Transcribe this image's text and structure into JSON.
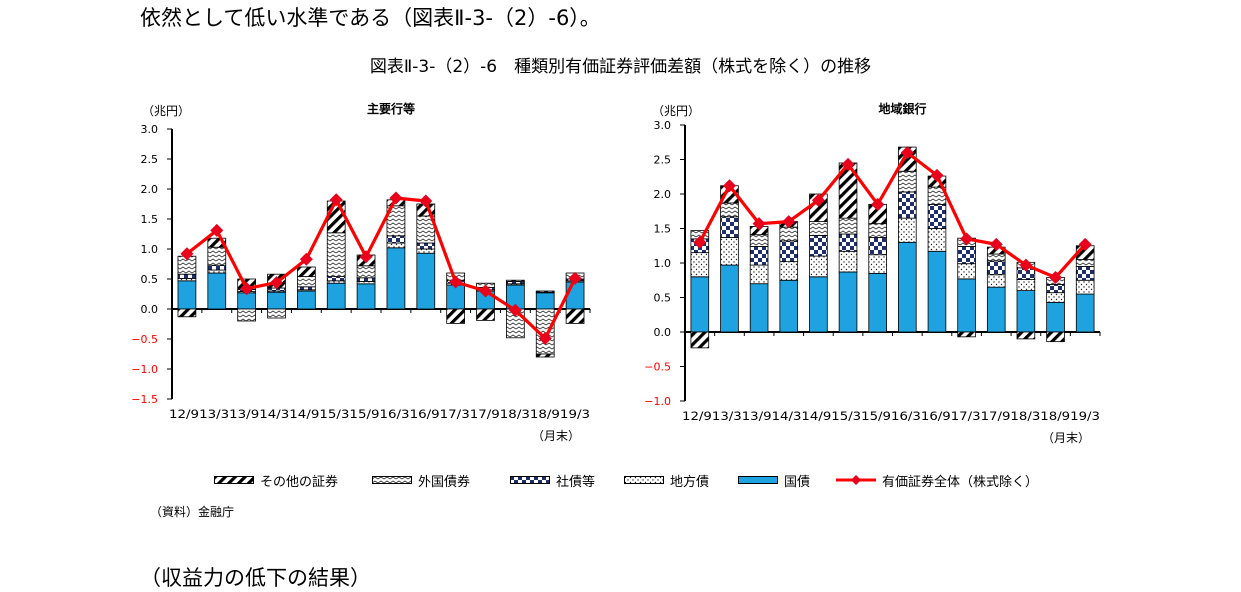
{
  "lead_text": "依然として低い水準である（図表Ⅱ-3-（2）-6）。",
  "figure_title": "図表Ⅱ-3-（2）-6　種類別有価証券評価差額（株式を除く）の推移",
  "source_note": "（資料）金融庁",
  "next_heading": "（収益力の低下の結果）",
  "colors": {
    "jgb": "#1fa3e0",
    "total_line": "#ff0000",
    "marker": "#e8001c",
    "outline": "#000000"
  },
  "legend": [
    {
      "key": "other",
      "label": "その他の証券",
      "pattern": "wide-diagonal"
    },
    {
      "key": "foreign",
      "label": "外国債券",
      "pattern": "zigzag"
    },
    {
      "key": "corp",
      "label": "社債等",
      "pattern": "checker-navy"
    },
    {
      "key": "local",
      "label": "地方債",
      "pattern": "dots"
    },
    {
      "key": "jgb",
      "label": "国債",
      "pattern": "solid-blue"
    },
    {
      "key": "total",
      "label": "有価証券全体（株式除く）",
      "pattern": "red-line-diamond"
    }
  ],
  "chart_data": [
    {
      "type": "bar",
      "stacked": true,
      "title": "主要行等",
      "ylabel": "（兆円）",
      "xunit": "（月末）",
      "ylim": [
        -1.5,
        3.0
      ],
      "yticks": [
        "3.0",
        "2.5",
        "2.0",
        "1.5",
        "1.0",
        "0.5",
        "0.0",
        "−0.5",
        "−1.0",
        "−1.5"
      ],
      "categories": [
        "12/9",
        "13/3",
        "13/9",
        "14/3",
        "14/9",
        "15/3",
        "15/9",
        "16/3",
        "16/9",
        "17/3",
        "17/9",
        "18/3",
        "18/9",
        "19/3"
      ],
      "x_axis_text": "12/913/313/914/314/915/315/916/316/917/317/918/318/919/3",
      "series": [
        {
          "name": "国債",
          "key": "jgb",
          "values": [
            0.47,
            0.6,
            0.27,
            0.28,
            0.3,
            0.43,
            0.42,
            1.02,
            0.93,
            0.4,
            0.3,
            0.4,
            0.27,
            0.45
          ]
        },
        {
          "name": "地方債",
          "key": "local",
          "values": [
            0.04,
            0.05,
            0.02,
            0.02,
            0.02,
            0.04,
            0.04,
            0.08,
            0.07,
            0.03,
            0.02,
            0.02,
            0.01,
            0.02
          ]
        },
        {
          "name": "社債等",
          "key": "corp",
          "values": [
            0.07,
            0.08,
            0.04,
            0.05,
            0.05,
            0.07,
            0.06,
            0.12,
            0.1,
            0.05,
            0.04,
            0.04,
            0.02,
            0.03
          ]
        },
        {
          "name": "外国債券",
          "key": "foreign",
          "values": [
            0.3,
            0.3,
            -0.2,
            -0.15,
            0.17,
            0.73,
            0.2,
            0.5,
            0.45,
            0.12,
            0.07,
            -0.48,
            -0.75,
            0.1
          ]
        },
        {
          "name": "その他の証券",
          "key": "other",
          "values": [
            -0.13,
            0.15,
            0.17,
            0.23,
            0.16,
            0.53,
            0.18,
            0.1,
            0.2,
            -0.24,
            -0.19,
            0.02,
            -0.05,
            -0.24
          ]
        }
      ],
      "line": {
        "name": "有価証券全体（株式除く）",
        "key": "total",
        "values": [
          0.92,
          1.31,
          0.34,
          0.44,
          0.83,
          1.82,
          0.87,
          1.85,
          1.8,
          0.45,
          0.3,
          -0.02,
          -0.49,
          0.51
        ]
      }
    },
    {
      "type": "bar",
      "stacked": true,
      "title": "地域銀行",
      "ylabel": "（兆円）",
      "xunit": "（月末）",
      "ylim": [
        -1.0,
        3.0
      ],
      "yticks": [
        "3.0",
        "2.5",
        "2.0",
        "1.5",
        "1.0",
        "0.5",
        "0.0",
        "−0.5",
        "−1.0"
      ],
      "categories": [
        "12/9",
        "13/3",
        "13/9",
        "14/3",
        "14/9",
        "15/3",
        "15/9",
        "16/3",
        "16/9",
        "17/3",
        "17/9",
        "18/3",
        "18/9",
        "19/3"
      ],
      "x_axis_text": "12/913/313/914/314/915/315/916/316/917/317/918/318/919/3",
      "series": [
        {
          "name": "国債",
          "key": "jgb",
          "values": [
            0.8,
            0.97,
            0.7,
            0.75,
            0.8,
            0.87,
            0.85,
            1.3,
            1.17,
            0.77,
            0.65,
            0.6,
            0.43,
            0.55
          ]
        },
        {
          "name": "地方債",
          "key": "local",
          "values": [
            0.35,
            0.4,
            0.27,
            0.27,
            0.3,
            0.3,
            0.27,
            0.35,
            0.33,
            0.22,
            0.18,
            0.16,
            0.14,
            0.2
          ]
        },
        {
          "name": "社債等",
          "key": "corp",
          "values": [
            0.2,
            0.3,
            0.27,
            0.3,
            0.3,
            0.25,
            0.25,
            0.38,
            0.35,
            0.25,
            0.2,
            0.17,
            0.12,
            0.2
          ]
        },
        {
          "name": "外国債券",
          "key": "foreign",
          "values": [
            0.12,
            0.2,
            0.17,
            0.2,
            0.2,
            0.23,
            0.2,
            0.3,
            0.25,
            0.12,
            0.1,
            0.08,
            0.1,
            0.1
          ]
        },
        {
          "name": "その他の証券",
          "key": "other",
          "values": [
            -0.23,
            0.25,
            0.12,
            0.08,
            0.4,
            0.8,
            0.28,
            0.35,
            0.16,
            -0.07,
            0.1,
            -0.1,
            -0.14,
            0.2
          ]
        }
      ],
      "line": {
        "name": "有価証券全体（株式除く）",
        "key": "total",
        "values": [
          1.3,
          2.12,
          1.57,
          1.6,
          1.91,
          2.43,
          1.85,
          2.6,
          2.27,
          1.35,
          1.27,
          0.97,
          0.79,
          1.27
        ]
      }
    }
  ]
}
